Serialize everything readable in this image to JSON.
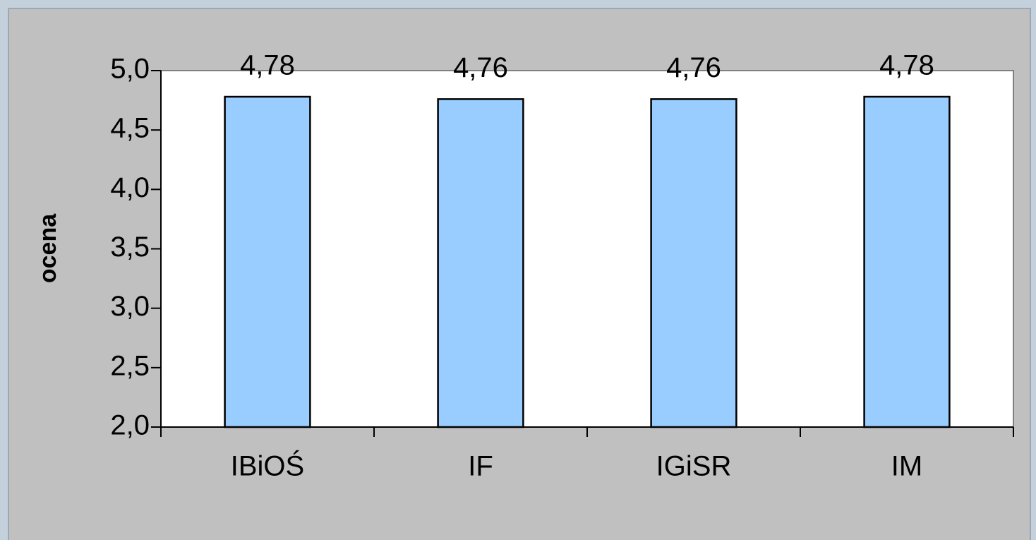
{
  "chart_data": {
    "type": "bar",
    "y_label": "ocena",
    "categories": [
      "IBiOŚ",
      "IF",
      "IGiSR",
      "IM"
    ],
    "values": [
      4.78,
      4.76,
      4.76,
      4.78
    ],
    "value_labels": [
      "4,78",
      "4,76",
      "4,76",
      "4,78"
    ],
    "color": "#99ccff",
    "ylim": [
      2,
      5
    ],
    "yticks": [
      {
        "value": 2,
        "label": "2,0"
      },
      {
        "value": 2.5,
        "label": "2,5"
      },
      {
        "value": 3,
        "label": "3,0"
      },
      {
        "value": 3.5,
        "label": "3,5"
      },
      {
        "value": 4,
        "label": "4,0"
      },
      {
        "value": 4.5,
        "label": "4,5"
      },
      {
        "value": 5,
        "label": "5,0"
      }
    ],
    "grid": false
  }
}
